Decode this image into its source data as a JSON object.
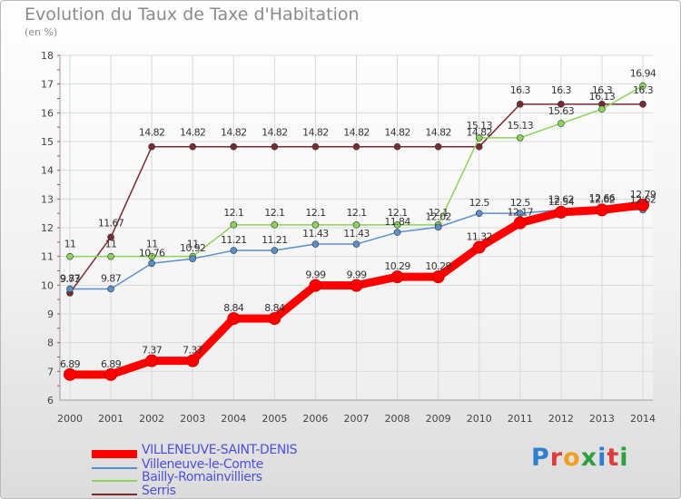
{
  "title": "Evolution du Taux de Taxe d'Habitation",
  "subtitle": "(en %)",
  "logo": {
    "text": "Proxiti",
    "letter_colors": [
      "#2f7fd0",
      "#e03a3a",
      "#f0a020",
      "#2e9e3e",
      "#2f7fd0",
      "#e03a3a",
      "#2e9e3e"
    ]
  },
  "chart_data": {
    "type": "line",
    "x": [
      2000,
      2001,
      2002,
      2003,
      2004,
      2005,
      2006,
      2007,
      2008,
      2009,
      2010,
      2011,
      2012,
      2013,
      2014
    ],
    "ylim": [
      6,
      18
    ],
    "yticks": [
      6,
      7,
      8,
      9,
      10,
      11,
      12,
      13,
      14,
      15,
      16,
      17,
      18
    ],
    "grid": true,
    "legend_position": "bottom-left",
    "series": [
      {
        "name": "VILLENEUVE-SAINT-DENIS",
        "color": "#ff0000",
        "values": [
          6.89,
          6.89,
          7.37,
          7.37,
          8.84,
          8.84,
          9.99,
          9.99,
          10.29,
          10.29,
          11.32,
          12.17,
          12.54,
          12.62,
          12.79
        ],
        "labels": [
          "6.89",
          "6.89",
          "7.37",
          "7.37",
          "8.84",
          "8.84",
          "9.99",
          "9.99",
          "10.29",
          "10.29",
          "11.32",
          "12.17",
          "12.54",
          "12.62",
          "12.79"
        ]
      },
      {
        "name": "Villeneuve-le-Comte",
        "color": "#5b8fc9",
        "values": [
          9.87,
          9.87,
          10.76,
          10.92,
          11.21,
          11.21,
          11.43,
          11.43,
          11.84,
          12.02,
          12.5,
          12.5,
          12.62,
          12.66,
          12.62
        ],
        "labels": [
          "9.87",
          "9.87",
          "10.76",
          "10.92",
          "11.21",
          "11.21",
          "11.43",
          "11.43",
          "11.84",
          "12.02",
          "12.5",
          "12.5",
          "12.62",
          "12.66",
          "12.62"
        ]
      },
      {
        "name": "Bailly-Romainvilliers",
        "color": "#8bd35a",
        "values": [
          11,
          11,
          11,
          11,
          12.1,
          12.1,
          12.1,
          12.1,
          12.1,
          12.1,
          15.13,
          15.13,
          15.63,
          16.13,
          16.94
        ],
        "labels": [
          "11",
          "11",
          "11",
          "11",
          "12.1",
          "12.1",
          "12.1",
          "12.1",
          "12.1",
          "12.1",
          "15.13",
          "15.13",
          "15.63",
          "16.13",
          "16.94"
        ]
      },
      {
        "name": "Serris",
        "color": "#7a2a30",
        "values": [
          9.73,
          11.67,
          14.82,
          14.82,
          14.82,
          14.82,
          14.82,
          14.82,
          14.82,
          14.82,
          14.82,
          16.3,
          16.3,
          16.3,
          16.3
        ],
        "labels": [
          "9.73",
          "11.67",
          "14.82",
          "14.82",
          "14.82",
          "14.82",
          "14.82",
          "14.82",
          "14.82",
          "14.82",
          "14.82",
          "16.3",
          "16.3",
          "16.3",
          "16.3"
        ]
      }
    ]
  }
}
